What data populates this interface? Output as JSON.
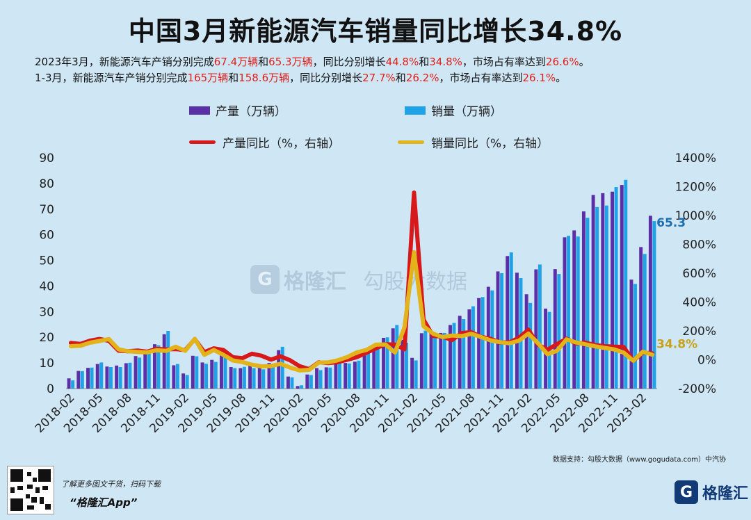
{
  "title": "中国3月新能源汽车销量同比增长34.8%",
  "subtitle_line1": [
    {
      "text": "2023年3月，新能源汽车产销分别完成",
      "hl": false
    },
    {
      "text": "67.4万辆",
      "hl": true
    },
    {
      "text": "和",
      "hl": false
    },
    {
      "text": "65.3万辆",
      "hl": true
    },
    {
      "text": "，同比分别增长",
      "hl": false
    },
    {
      "text": "44.8%",
      "hl": true
    },
    {
      "text": "和",
      "hl": false
    },
    {
      "text": "34.8%",
      "hl": true
    },
    {
      "text": "，市场占有率达到",
      "hl": false
    },
    {
      "text": "26.6%",
      "hl": true
    },
    {
      "text": "。",
      "hl": false
    }
  ],
  "subtitle_line2": [
    {
      "text": "1-3月，新能源汽车产销分别完成",
      "hl": false
    },
    {
      "text": "165万辆",
      "hl": true
    },
    {
      "text": "和",
      "hl": false
    },
    {
      "text": "158.6万辆",
      "hl": true
    },
    {
      "text": "，同比分别增长",
      "hl": false
    },
    {
      "text": "27.7%",
      "hl": true
    },
    {
      "text": "和",
      "hl": false
    },
    {
      "text": "26.2%",
      "hl": true
    },
    {
      "text": "，市场占有率达到",
      "hl": false
    },
    {
      "text": "26.1%",
      "hl": true
    },
    {
      "text": "。",
      "hl": false
    }
  ],
  "colors": {
    "production_bar": "#5b2fa6",
    "sales_bar": "#1fa3e6",
    "production_yoy": "#d7191c",
    "sales_yoy": "#e3b31b",
    "last_sales_label": "#1b6fb0",
    "last_yoy_label": "#c7a21a"
  },
  "chart_data": {
    "type": "bar+line",
    "legend": [
      "产量（万辆）",
      "销量（万辆）",
      "产量同比（%，右轴）",
      "销量同比（%，右轴）"
    ],
    "legend_position": "top",
    "y_left": {
      "min": 0,
      "max": 90,
      "step": 10,
      "ticks": [
        "0",
        "10",
        "20",
        "30",
        "40",
        "50",
        "60",
        "70",
        "80",
        "90"
      ]
    },
    "y_right": {
      "min": -200,
      "max": 1400,
      "step": 200,
      "ticks": [
        "-200%",
        "0%",
        "200%",
        "400%",
        "600%",
        "800%",
        "1000%",
        "1200%",
        "1400%"
      ]
    },
    "x_labels": [
      "2018-02",
      "2018-05",
      "2018-08",
      "2018-11",
      "2019-02",
      "2019-05",
      "2019-08",
      "2019-11",
      "2020-02",
      "2020-05",
      "2020-08",
      "2020-11",
      "2021-02",
      "2021-05",
      "2021-08",
      "2021-11",
      "2022-02",
      "2022-05",
      "2022-08",
      "2022-11",
      "2023-02"
    ],
    "x_label_every": 3,
    "categories": [
      "2018-02",
      "2018-03",
      "2018-04",
      "2018-05",
      "2018-06",
      "2018-07",
      "2018-08",
      "2018-09",
      "2018-10",
      "2018-11",
      "2018-12",
      "2019-01",
      "2019-02",
      "2019-03",
      "2019-04",
      "2019-05",
      "2019-06",
      "2019-07",
      "2019-08",
      "2019-09",
      "2019-10",
      "2019-11",
      "2019-12",
      "2020-01",
      "2020-02",
      "2020-03",
      "2020-04",
      "2020-05",
      "2020-06",
      "2020-07",
      "2020-08",
      "2020-09",
      "2020-10",
      "2020-11",
      "2020-12",
      "2021-01",
      "2021-02",
      "2021-03",
      "2021-04",
      "2021-05",
      "2021-06",
      "2021-07",
      "2021-08",
      "2021-09",
      "2021-10",
      "2021-11",
      "2021-12",
      "2022-01",
      "2022-02",
      "2022-03",
      "2022-04",
      "2022-05",
      "2022-06",
      "2022-07",
      "2022-08",
      "2022-09",
      "2022-10",
      "2022-11",
      "2022-12",
      "2023-01",
      "2023-02",
      "2023-03"
    ],
    "series": [
      {
        "name": "产量（万辆）",
        "kind": "bar",
        "values": [
          4.0,
          6.9,
          8.1,
          9.6,
          8.6,
          9.0,
          9.9,
          12.7,
          14.6,
          17.3,
          21.2,
          9.1,
          5.9,
          12.8,
          10.2,
          11.2,
          13.4,
          8.4,
          8.0,
          8.9,
          9.5,
          10.0,
          15.0,
          4.7,
          1.0,
          5.5,
          8.0,
          8.3,
          10.2,
          10.0,
          10.5,
          13.6,
          16.7,
          19.8,
          23.5,
          19.0,
          12.0,
          21.6,
          21.8,
          21.7,
          24.8,
          28.4,
          30.9,
          35.3,
          39.7,
          45.7,
          51.7,
          45.2,
          36.8,
          46.5,
          31.2,
          46.6,
          59.0,
          61.7,
          69.1,
          75.5,
          76.2,
          76.8,
          79.4,
          42.5,
          55.2,
          67.4
        ]
      },
      {
        "name": "销量（万辆）",
        "kind": "bar",
        "values": [
          3.2,
          6.8,
          8.2,
          10.2,
          8.4,
          8.4,
          10.1,
          12.1,
          13.8,
          16.9,
          22.5,
          9.6,
          5.3,
          12.6,
          9.7,
          10.4,
          15.2,
          8.0,
          8.5,
          8.0,
          7.5,
          9.5,
          16.3,
          4.4,
          1.3,
          5.3,
          7.2,
          8.2,
          10.4,
          9.8,
          10.9,
          13.8,
          16.0,
          20.0,
          24.8,
          17.9,
          11.0,
          22.6,
          20.6,
          21.7,
          25.6,
          27.1,
          32.1,
          35.7,
          38.3,
          45.0,
          53.1,
          43.1,
          33.4,
          48.4,
          29.9,
          44.7,
          59.6,
          59.3,
          66.6,
          70.8,
          71.4,
          78.6,
          81.4,
          40.8,
          52.5,
          65.3
        ]
      },
      {
        "name": "产量同比（%，右轴）",
        "kind": "line",
        "values": [
          117,
          110,
          132,
          144,
          131,
          63,
          59,
          64,
          56,
          75,
          72,
          74,
          67,
          143,
          53,
          79,
          68,
          18,
          11,
          42,
          28,
          1,
          24,
          -4,
          -45,
          -65,
          -18,
          -23,
          -17,
          0,
          18,
          48,
          79,
          108,
          105,
          73,
          1159,
          278,
          166,
          160,
          137,
          185,
          192,
          159,
          146,
          120,
          120,
          152,
          209,
          105,
          70,
          108,
          146,
          113,
          118,
          102,
          94,
          91,
          88,
          -7,
          49,
          44.8
        ]
      },
      {
        "name": "销量同比（%，右轴）",
        "kind": "line",
        "values": [
          94,
          97,
          118,
          130,
          143,
          73,
          59,
          54,
          51,
          66,
          61,
          90,
          62,
          145,
          34,
          68,
          34,
          -5,
          -16,
          -34,
          -46,
          -44,
          -28,
          -54,
          -74,
          -70,
          -20,
          -18,
          -4,
          19,
          51,
          68,
          105,
          106,
          50,
          225,
          745,
          233,
          181,
          157,
          168,
          164,
          180,
          158,
          135,
          122,
          114,
          132,
          181,
          115,
          38,
          62,
          141,
          120,
          107,
          93,
          82,
          72,
          49,
          -7,
          56,
          34.8
        ]
      }
    ],
    "last_labels": {
      "sales": "65.3",
      "sales_yoy": "34.8%"
    }
  },
  "source": "数据支持：勾股大数据（www.gogudata.com）中汽协",
  "promo_line1": "了解更多图文干货，扫码下载",
  "promo_line2": "“格隆汇App”",
  "brand_icon": "G",
  "brand": "格隆汇",
  "watermark": {
    "icon": "G",
    "brand": "格隆汇",
    "text": "勾股大数据"
  }
}
